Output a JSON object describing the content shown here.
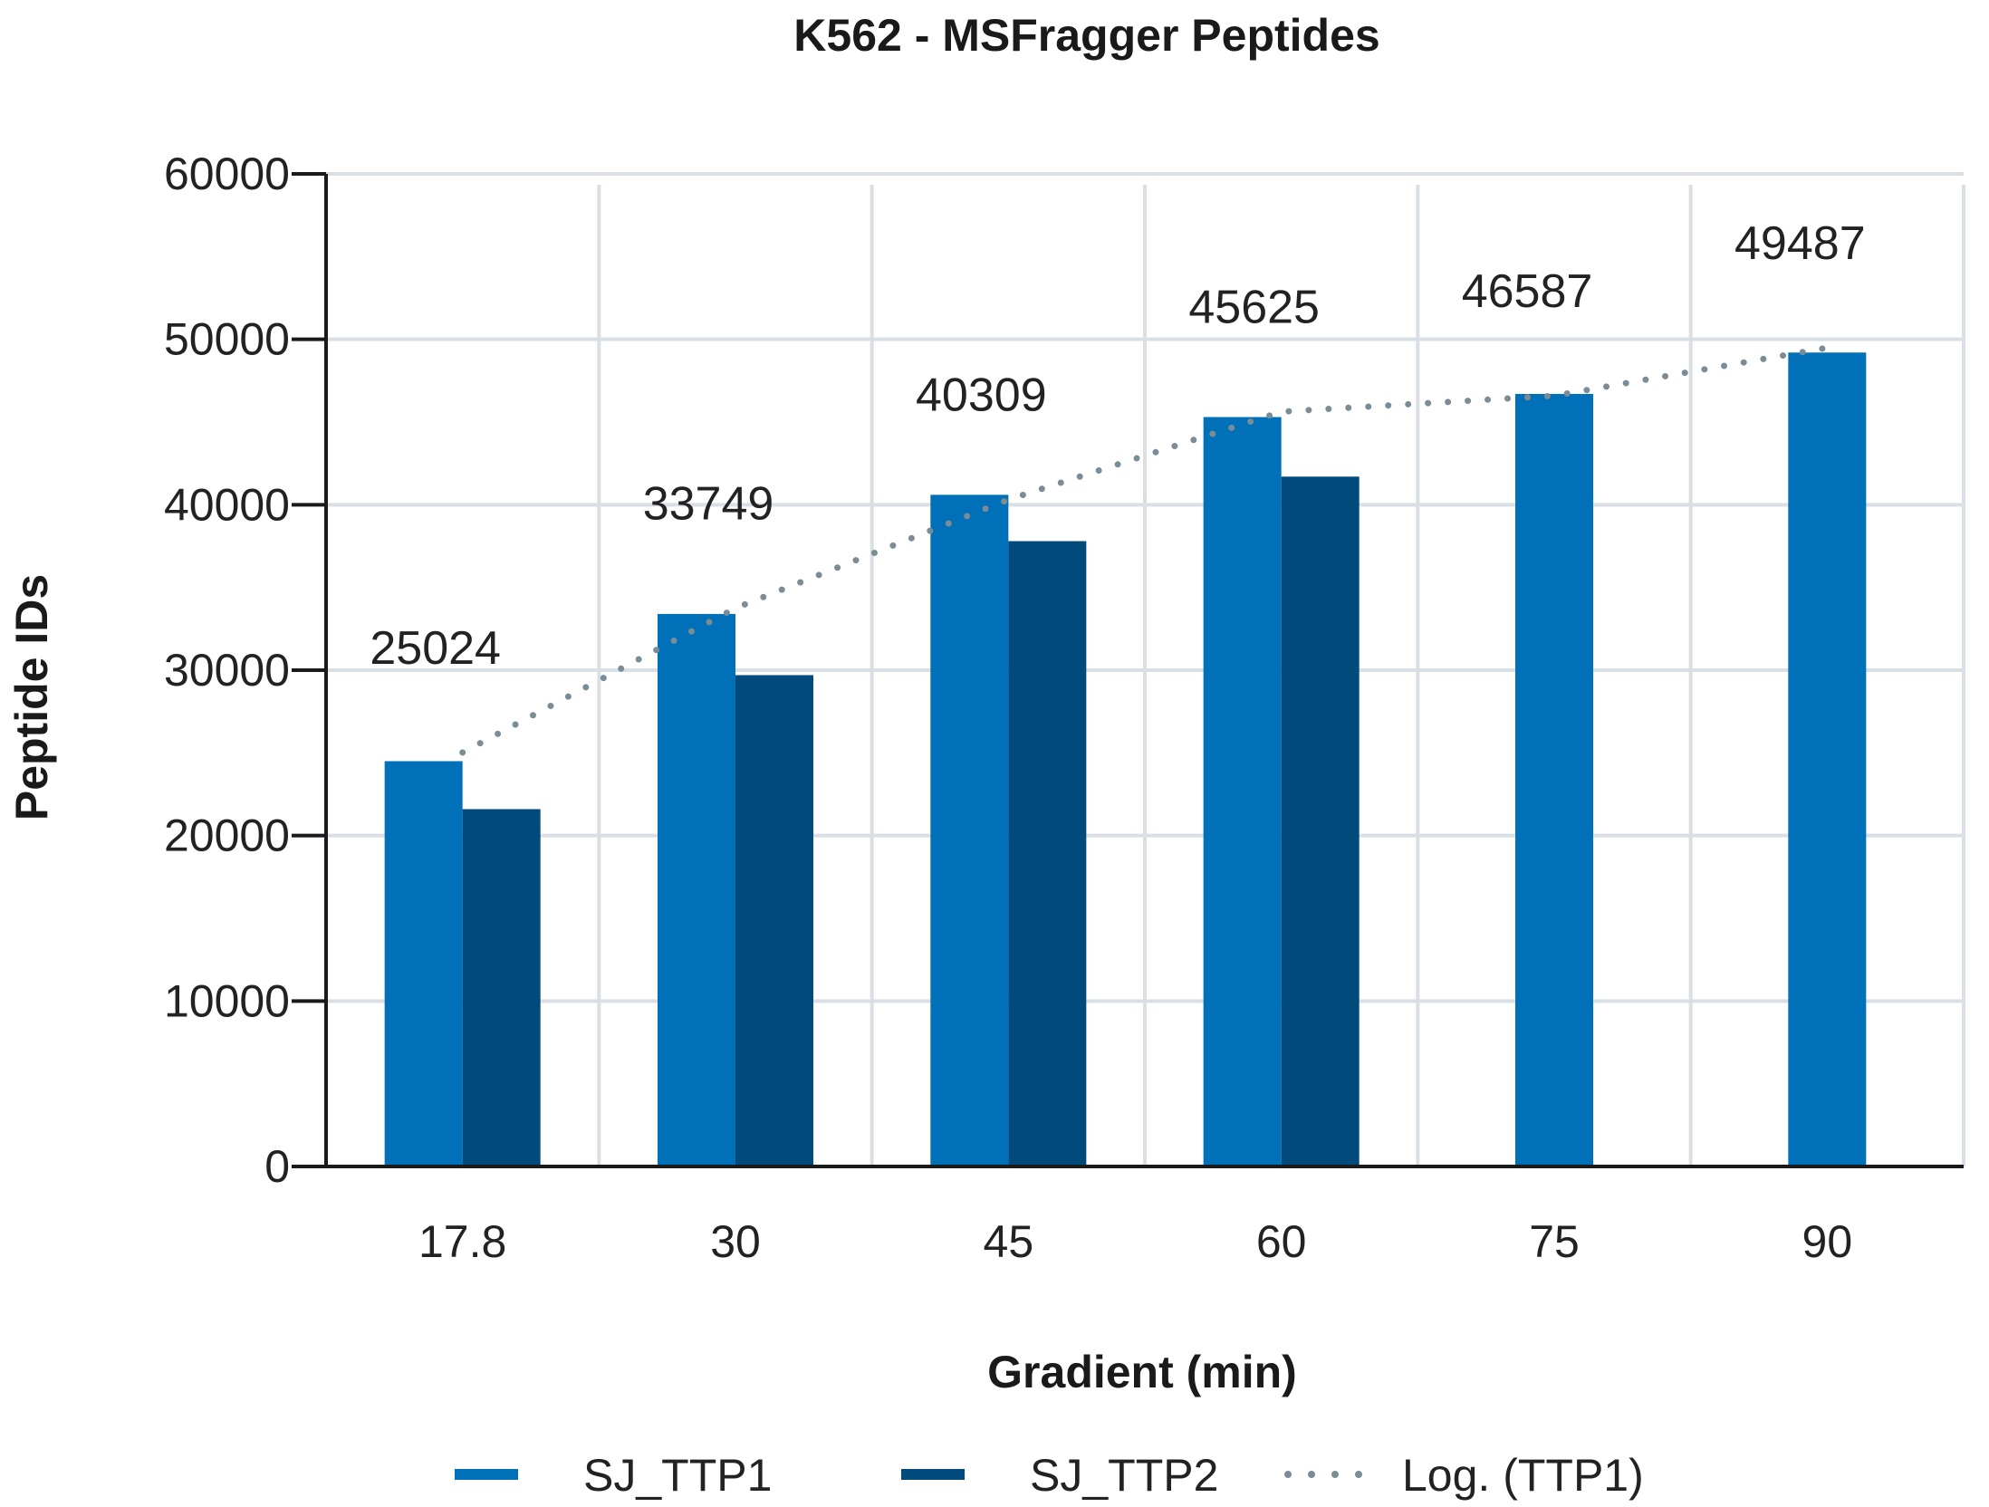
{
  "chart_data": {
    "type": "bar",
    "title": "K562 - MSFragger Peptides",
    "xlabel": "Gradient (min)",
    "ylabel": "Peptide IDs",
    "categories": [
      "17.8",
      "30",
      "45",
      "60",
      "75",
      "90"
    ],
    "ylim": [
      0,
      60000
    ],
    "yticks": [
      "0",
      "10000",
      "20000",
      "30000",
      "40000",
      "50000",
      "60000"
    ],
    "series": [
      {
        "name": "SJ_TTP1",
        "color": "#0070b8",
        "values": [
          24500,
          33400,
          40600,
          45300,
          46700,
          49200
        ]
      },
      {
        "name": "SJ_TTP2",
        "color": "#004a7c",
        "values": [
          21600,
          29700,
          37800,
          41700,
          null,
          null
        ]
      }
    ],
    "trendline": {
      "name": "Log. (TTP1)",
      "type": "logarithmic",
      "color": "#7a8c96",
      "values": [
        25024,
        33749,
        40309,
        45625,
        46587,
        49487
      ]
    },
    "data_labels": [
      "25024",
      "33749",
      "40309",
      "45625",
      "46587",
      "49487"
    ],
    "grid": true,
    "legend": "bottom"
  }
}
